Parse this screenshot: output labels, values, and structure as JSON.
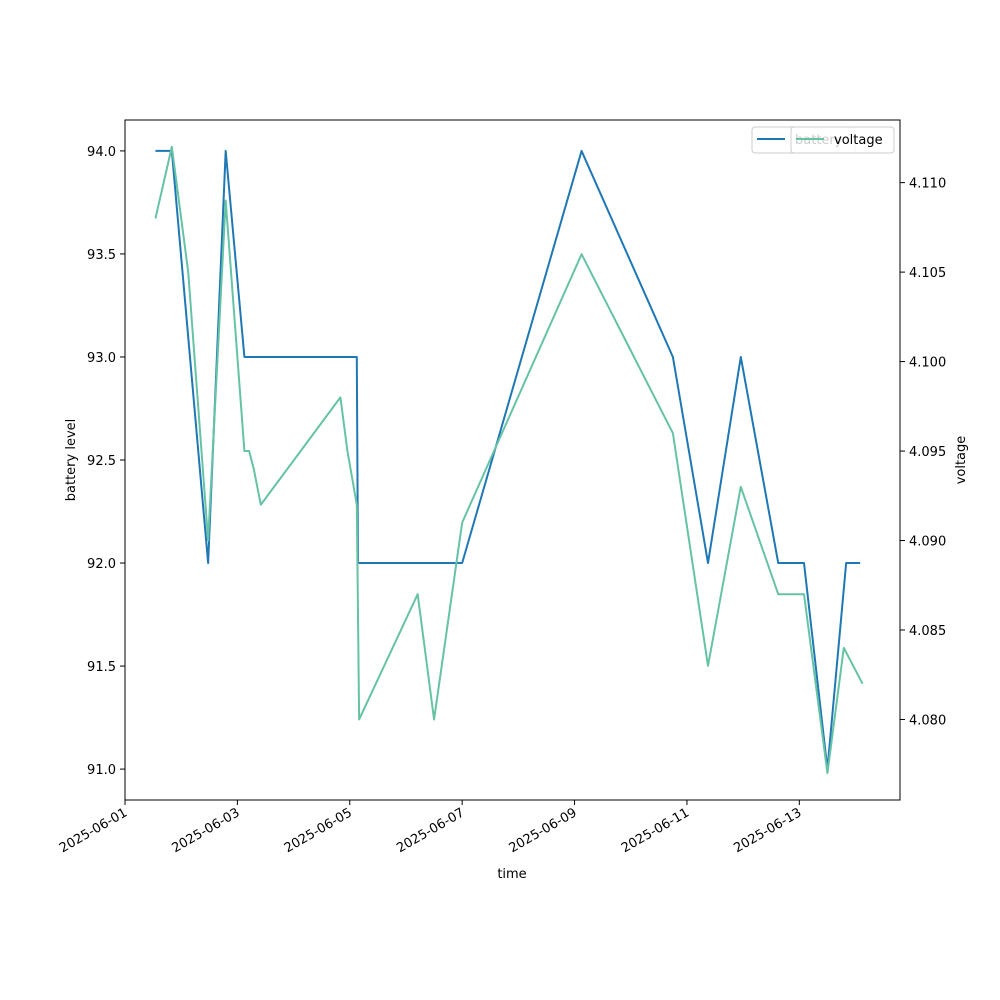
{
  "chart_data": {
    "type": "line",
    "xlabel": "time",
    "ylabel": "battery level",
    "y2label": "voltage",
    "x_ticks": [
      "2025-06-01",
      "2025-06-03",
      "2025-06-05",
      "2025-06-07",
      "2025-06-09",
      "2025-06-11",
      "2025-06-13"
    ],
    "x_range": [
      "2025-06-01T00:00",
      "2025-06-14T19:00"
    ],
    "ylim": [
      90.85,
      94.15
    ],
    "y_ticks": [
      91.0,
      91.5,
      92.0,
      92.5,
      93.0,
      93.5,
      94.0
    ],
    "y2lim": [
      4.0755,
      4.1135
    ],
    "y2_ticks": [
      4.08,
      4.085,
      4.09,
      4.095,
      4.1,
      4.105,
      4.11
    ],
    "grid": false,
    "legend_placement": "upper-right",
    "series": [
      {
        "name": "battery",
        "axis": "left",
        "color": "#1f77b4",
        "points": [
          {
            "x": "2025-06-01T13:00",
            "y": 94
          },
          {
            "x": "2025-06-01T20:00",
            "y": 94
          },
          {
            "x": "2025-06-02T11:30",
            "y": 92
          },
          {
            "x": "2025-06-02T19:00",
            "y": 94
          },
          {
            "x": "2025-06-03T03:00",
            "y": 93
          },
          {
            "x": "2025-06-05T03:00",
            "y": 93
          },
          {
            "x": "2025-06-05T03:30",
            "y": 92
          },
          {
            "x": "2025-06-07T00:00",
            "y": 92
          },
          {
            "x": "2025-06-09T03:00",
            "y": 94
          },
          {
            "x": "2025-06-10T18:00",
            "y": 93
          },
          {
            "x": "2025-06-11T09:00",
            "y": 92
          },
          {
            "x": "2025-06-11T23:00",
            "y": 93
          },
          {
            "x": "2025-06-12T15:00",
            "y": 92
          },
          {
            "x": "2025-06-13T02:00",
            "y": 92
          },
          {
            "x": "2025-06-13T12:00",
            "y": 91
          },
          {
            "x": "2025-06-13T20:00",
            "y": 92
          },
          {
            "x": "2025-06-14T02:00",
            "y": 92
          }
        ]
      },
      {
        "name": "voltage",
        "axis": "right",
        "color": "#66c2a5",
        "points": [
          {
            "x": "2025-06-01T13:00",
            "y": 4.108
          },
          {
            "x": "2025-06-01T20:00",
            "y": 4.112
          },
          {
            "x": "2025-06-02T03:00",
            "y": 4.105
          },
          {
            "x": "2025-06-02T11:30",
            "y": 4.09
          },
          {
            "x": "2025-06-02T19:00",
            "y": 4.109
          },
          {
            "x": "2025-06-03T03:00",
            "y": 4.095
          },
          {
            "x": "2025-06-03T05:00",
            "y": 4.095
          },
          {
            "x": "2025-06-03T07:00",
            "y": 4.094
          },
          {
            "x": "2025-06-03T10:00",
            "y": 4.092
          },
          {
            "x": "2025-06-04T20:00",
            "y": 4.098
          },
          {
            "x": "2025-06-04T23:00",
            "y": 4.095
          },
          {
            "x": "2025-06-05T03:00",
            "y": 4.092
          },
          {
            "x": "2025-06-05T04:00",
            "y": 4.08
          },
          {
            "x": "2025-06-06T05:00",
            "y": 4.087
          },
          {
            "x": "2025-06-06T12:00",
            "y": 4.08
          },
          {
            "x": "2025-06-07T00:00",
            "y": 4.091
          },
          {
            "x": "2025-06-09T03:00",
            "y": 4.106
          },
          {
            "x": "2025-06-10T18:00",
            "y": 4.096
          },
          {
            "x": "2025-06-11T09:00",
            "y": 4.083
          },
          {
            "x": "2025-06-11T23:00",
            "y": 4.093
          },
          {
            "x": "2025-06-12T15:00",
            "y": 4.087
          },
          {
            "x": "2025-06-13T02:00",
            "y": 4.087
          },
          {
            "x": "2025-06-13T12:00",
            "y": 4.077
          },
          {
            "x": "2025-06-13T19:00",
            "y": 4.084
          },
          {
            "x": "2025-06-14T03:00",
            "y": 4.082
          }
        ]
      }
    ]
  }
}
